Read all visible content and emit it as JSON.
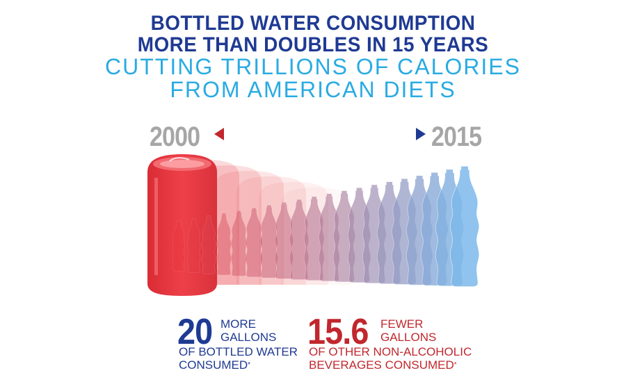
{
  "header": {
    "title_line1": "BOTTLED WATER CONSUMPTION",
    "title_line2": "MORE THAN DOUBLES IN 15 YEARS",
    "subtitle_line1": "CUTTING TRILLIONS OF CALORIES",
    "subtitle_line2": "FROM AMERICAN DIETS"
  },
  "timeline": {
    "start_year": "2000",
    "end_year": "2015"
  },
  "stats": {
    "water": {
      "number": "20",
      "line1": "MORE",
      "line2": "GALLONS",
      "line3": "OF BOTTLED WATER",
      "line4": "CONSUMED",
      "footnote": "*"
    },
    "other": {
      "number": "15.6",
      "line1": "FEWER",
      "line2": "GALLONS",
      "line3": "OF OTHER NON-ALCOHOLIC",
      "line4": "BEVERAGES CONSUMED",
      "footnote": "*"
    }
  },
  "colors": {
    "title_blue": "#1f3a93",
    "subtitle_cyan": "#29abe2",
    "year_gray": "#a6a6a6",
    "can_red": "#e8363f",
    "water_blue": "#7db9ea",
    "stat_red": "#c1272d"
  },
  "icons": [
    "soda-can-icon",
    "water-bottle-icon",
    "double-arrow-icon"
  ]
}
